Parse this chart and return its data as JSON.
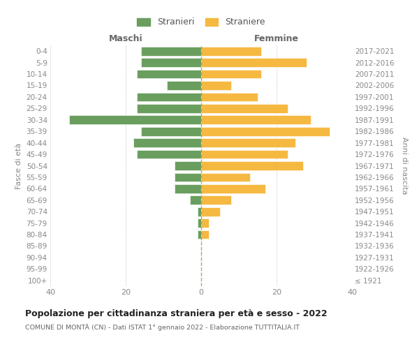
{
  "age_groups": [
    "100+",
    "95-99",
    "90-94",
    "85-89",
    "80-84",
    "75-79",
    "70-74",
    "65-69",
    "60-64",
    "55-59",
    "50-54",
    "45-49",
    "40-44",
    "35-39",
    "30-34",
    "25-29",
    "20-24",
    "15-19",
    "10-14",
    "5-9",
    "0-4"
  ],
  "birth_years": [
    "≤ 1921",
    "1922-1926",
    "1927-1931",
    "1932-1936",
    "1937-1941",
    "1942-1946",
    "1947-1951",
    "1952-1956",
    "1957-1961",
    "1962-1966",
    "1967-1971",
    "1972-1976",
    "1977-1981",
    "1982-1986",
    "1987-1991",
    "1992-1996",
    "1997-2001",
    "2002-2006",
    "2007-2011",
    "2012-2016",
    "2017-2021"
  ],
  "maschi": [
    0,
    0,
    0,
    0,
    1,
    1,
    1,
    3,
    7,
    7,
    7,
    17,
    18,
    16,
    35,
    17,
    17,
    9,
    17,
    16,
    16
  ],
  "femmine": [
    0,
    0,
    0,
    0,
    2,
    2,
    5,
    8,
    17,
    13,
    27,
    23,
    25,
    34,
    29,
    23,
    15,
    8,
    16,
    28,
    16
  ],
  "color_maschi": "#6a9e5f",
  "color_femmine": "#f5b942",
  "title": "Popolazione per cittadinanza straniera per età e sesso - 2022",
  "subtitle": "COMUNE DI MONTÀ (CN) - Dati ISTAT 1° gennaio 2022 - Elaborazione TUTTITALIA.IT",
  "legend_maschi": "Stranieri",
  "legend_femmine": "Straniere",
  "label_maschi": "Maschi",
  "label_femmine": "Femmine",
  "ylabel_left": "Fasce di età",
  "ylabel_right": "Anni di nascita",
  "xlim": 40,
  "background_color": "#ffffff"
}
